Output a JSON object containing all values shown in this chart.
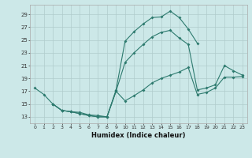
{
  "title": "",
  "xlabel": "Humidex (Indice chaleur)",
  "bg_color": "#cce8e8",
  "grid_color": "#b0cccc",
  "line_color": "#2d7a6e",
  "xlim": [
    -0.5,
    23.5
  ],
  "ylim": [
    12.0,
    30.5
  ],
  "xticks": [
    0,
    1,
    2,
    3,
    4,
    5,
    6,
    7,
    8,
    9,
    10,
    11,
    12,
    13,
    14,
    15,
    16,
    17,
    18,
    19,
    20,
    21,
    22,
    23
  ],
  "yticks": [
    13,
    15,
    17,
    19,
    21,
    23,
    25,
    27,
    29
  ],
  "line1_x": [
    0,
    1,
    2,
    3,
    4,
    5,
    6,
    7,
    8,
    9,
    10,
    11,
    12,
    13,
    14,
    15,
    16,
    17,
    18
  ],
  "line1_y": [
    17.5,
    16.5,
    15.0,
    14.0,
    13.8,
    13.7,
    13.3,
    13.2,
    13.0,
    17.2,
    24.8,
    26.3,
    27.5,
    28.5,
    28.6,
    29.5,
    28.5,
    26.7,
    24.5
  ],
  "line2_x": [
    2,
    3,
    4,
    5,
    6,
    7,
    8,
    9,
    10,
    11,
    12,
    13,
    14,
    15,
    16,
    17,
    18,
    19,
    20,
    21,
    22,
    23
  ],
  "line2_y": [
    15.0,
    14.0,
    13.8,
    13.5,
    13.2,
    13.0,
    13.0,
    17.0,
    21.5,
    23.0,
    24.3,
    25.5,
    26.2,
    26.5,
    25.3,
    24.3,
    17.2,
    17.5,
    18.0,
    21.0,
    20.2,
    19.5
  ],
  "line3_x": [
    2,
    3,
    4,
    5,
    6,
    7,
    8,
    9,
    10,
    11,
    12,
    13,
    14,
    15,
    16,
    17,
    18,
    19,
    20,
    21,
    22,
    23
  ],
  "line3_y": [
    15.0,
    14.0,
    13.8,
    13.5,
    13.2,
    13.0,
    13.0,
    17.0,
    15.5,
    16.3,
    17.2,
    18.3,
    19.0,
    19.5,
    20.0,
    20.7,
    16.5,
    16.8,
    17.5,
    19.2,
    19.2,
    19.3
  ]
}
